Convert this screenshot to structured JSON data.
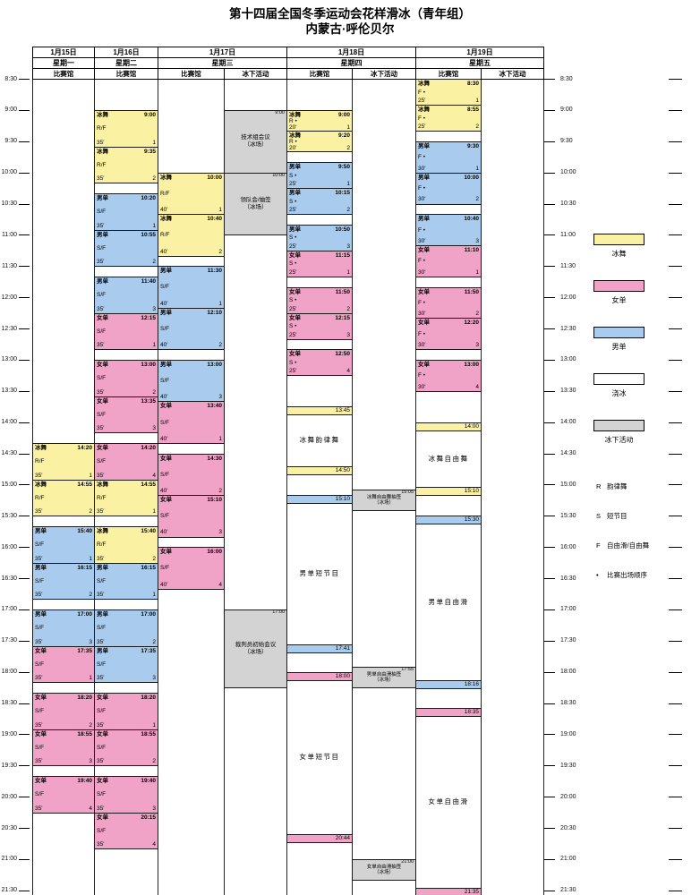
{
  "title": "第十四届全国冬季运动会花样滑冰（青年组）",
  "subtitle": "内蒙古·呼伦贝尔",
  "time_axis": {
    "start_min": 510,
    "end_min": 1290,
    "step_min": 30,
    "first_label": "8:30",
    "last_label": "21:30"
  },
  "legend": {
    "items": [
      {
        "label": "冰舞",
        "color": "#FBF1A2"
      },
      {
        "label": "女单",
        "color": "#F0A3C6"
      },
      {
        "label": "男单",
        "color": "#A9CCEE"
      },
      {
        "label": "浇冰",
        "color": "#FFFFFF"
      },
      {
        "label": "冰下活动",
        "color": "#D3D3D3"
      }
    ],
    "abbreviations": [
      {
        "symbol": "R",
        "label": "韵律舞"
      },
      {
        "symbol": "S",
        "label": "短节目"
      },
      {
        "symbol": "F",
        "label": "自由滑/自由舞"
      },
      {
        "symbol": "•",
        "label": "比赛出场顺序"
      }
    ]
  },
  "days": [
    {
      "date": "1月15日",
      "weekday": "星期一",
      "sub_columns": [
        {
          "header": "比赛馆",
          "items": [
            {
              "type": "practice",
              "discipline": "冰舞",
              "time": "14:20",
              "segment": "R/F",
              "duration": "35'",
              "group": "1"
            },
            {
              "type": "practice",
              "discipline": "冰舞",
              "time": "14:55",
              "segment": "R/F",
              "duration": "35'",
              "group": "2"
            },
            {
              "type": "practice",
              "discipline": "男单",
              "time": "15:40",
              "segment": "S/F",
              "duration": "35'",
              "group": "1"
            },
            {
              "type": "practice",
              "discipline": "男单",
              "time": "16:15",
              "segment": "S/F",
              "duration": "35'",
              "group": "2"
            },
            {
              "type": "practice",
              "discipline": "男单",
              "time": "17:00",
              "segment": "S/F",
              "duration": "35'",
              "group": "3"
            },
            {
              "type": "practice",
              "discipline": "女单",
              "time": "17:35",
              "segment": "S/F",
              "duration": "35'",
              "group": "1"
            },
            {
              "type": "practice",
              "discipline": "女单",
              "time": "18:20",
              "segment": "S/F",
              "duration": "35'",
              "group": "2"
            },
            {
              "type": "practice",
              "discipline": "女单",
              "time": "18:55",
              "segment": "S/F",
              "duration": "35'",
              "group": "3"
            },
            {
              "type": "practice",
              "discipline": "女单",
              "time": "19:40",
              "segment": "S/F",
              "duration": "35'",
              "group": "4"
            }
          ]
        }
      ]
    },
    {
      "date": "1月16日",
      "weekday": "星期二",
      "sub_columns": [
        {
          "header": "比赛馆",
          "items": [
            {
              "type": "practice",
              "discipline": "冰舞",
              "time": "9:00",
              "segment": "R/F",
              "duration": "35'",
              "group": "1"
            },
            {
              "type": "practice",
              "discipline": "冰舞",
              "time": "9:35",
              "segment": "R/F",
              "duration": "35'",
              "group": "2"
            },
            {
              "type": "practice",
              "discipline": "男单",
              "time": "10:20",
              "segment": "S/F",
              "duration": "35'",
              "group": "1"
            },
            {
              "type": "practice",
              "discipline": "男单",
              "time": "10:55",
              "segment": "S/F",
              "duration": "35'",
              "group": "2"
            },
            {
              "type": "practice",
              "discipline": "男单",
              "time": "11:40",
              "segment": "S/F",
              "duration": "35'",
              "group": "3"
            },
            {
              "type": "practice",
              "discipline": "女单",
              "time": "12:15",
              "segment": "S/F",
              "duration": "35'",
              "group": "1"
            },
            {
              "type": "practice",
              "discipline": "女单",
              "time": "13:00",
              "segment": "S/F",
              "duration": "35'",
              "group": "2"
            },
            {
              "type": "practice",
              "discipline": "女单",
              "time": "13:35",
              "segment": "S/F",
              "duration": "35'",
              "group": "3"
            },
            {
              "type": "practice",
              "discipline": "女单",
              "time": "14:20",
              "segment": "S/F",
              "duration": "35'",
              "group": "4"
            },
            {
              "type": "practice",
              "discipline": "冰舞",
              "time": "14:55",
              "segment": "R/F",
              "duration": "35'",
              "group": "1"
            },
            {
              "type": "practice",
              "discipline": "冰舞",
              "time": "15:40",
              "segment": "R/F",
              "duration": "35'",
              "group": "2"
            },
            {
              "type": "practice",
              "discipline": "男单",
              "time": "16:15",
              "segment": "S/F",
              "duration": "35'",
              "group": "1"
            },
            {
              "type": "practice",
              "discipline": "男单",
              "time": "17:00",
              "segment": "S/F",
              "duration": "35'",
              "group": "2"
            },
            {
              "type": "practice",
              "discipline": "男单",
              "time": "17:35",
              "segment": "S/F",
              "duration": "35'",
              "group": "3"
            },
            {
              "type": "practice",
              "discipline": "女单",
              "time": "18:20",
              "segment": "S/F",
              "duration": "35'",
              "group": "1"
            },
            {
              "type": "practice",
              "discipline": "女单",
              "time": "18:55",
              "segment": "S/F",
              "duration": "35'",
              "group": "2"
            },
            {
              "type": "practice",
              "discipline": "女单",
              "time": "19:40",
              "segment": "S/F",
              "duration": "35'",
              "group": "3"
            },
            {
              "type": "practice",
              "discipline": "女单",
              "time": "20:15",
              "segment": "S/F",
              "duration": "35'",
              "group": "4"
            }
          ]
        }
      ]
    },
    {
      "date": "1月17日",
      "weekday": "星期三",
      "sub_columns": [
        {
          "header": "比赛馆",
          "items": [
            {
              "type": "practice",
              "discipline": "冰舞",
              "time": "10:00",
              "segment": "R/F",
              "duration": "40'",
              "group": "1"
            },
            {
              "type": "practice",
              "discipline": "冰舞",
              "time": "10:40",
              "segment": "R/F",
              "duration": "40'",
              "group": "2"
            },
            {
              "type": "practice",
              "discipline": "男单",
              "time": "11:30",
              "segment": "S/F",
              "duration": "40'",
              "group": "1"
            },
            {
              "type": "practice",
              "discipline": "男单",
              "time": "12:10",
              "segment": "S/F",
              "duration": "40'",
              "group": "2"
            },
            {
              "type": "practice",
              "discipline": "男单",
              "time": "13:00",
              "segment": "S/F",
              "duration": "40'",
              "group": "3"
            },
            {
              "type": "practice",
              "discipline": "女单",
              "time": "13:40",
              "segment": "S/F",
              "duration": "40'",
              "group": "1"
            },
            {
              "type": "practice",
              "discipline": "女单",
              "time": "14:30",
              "segment": "S/F",
              "duration": "40'",
              "group": "2"
            },
            {
              "type": "practice",
              "discipline": "女单",
              "time": "15:10",
              "segment": "S/F",
              "duration": "40'",
              "group": "3"
            },
            {
              "type": "practice",
              "discipline": "女单",
              "time": "16:00",
              "segment": "S/F",
              "duration": "40'",
              "group": "4"
            }
          ]
        },
        {
          "header": "冰下活动",
          "items": [
            {
              "type": "meeting",
              "name": "技术组会议",
              "venue": "（冰场）",
              "time": "9:00",
              "end": "10:00"
            },
            {
              "type": "meeting",
              "name": "领队会/抽签",
              "venue": "（冰场）",
              "time": "10:00",
              "end": "11:00"
            },
            {
              "type": "meeting",
              "name": "裁判员初始会议",
              "venue": "（冰场）",
              "time": "17:00",
              "end": "18:15"
            }
          ]
        }
      ]
    },
    {
      "date": "1月18日",
      "weekday": "星期四",
      "sub_columns": [
        {
          "header": "比赛馆",
          "items": [
            {
              "type": "practice",
              "discipline": "冰舞",
              "time": "9:00",
              "segment": "R •",
              "duration": "20'",
              "group": "1"
            },
            {
              "type": "practice",
              "discipline": "冰舞",
              "time": "9:20",
              "segment": "R •",
              "duration": "20'",
              "group": "2"
            },
            {
              "type": "practice",
              "discipline": "男单",
              "time": "9:50",
              "segment": "S •",
              "duration": "25'",
              "group": "1"
            },
            {
              "type": "practice",
              "discipline": "男单",
              "time": "10:15",
              "segment": "S •",
              "duration": "25'",
              "group": "2"
            },
            {
              "type": "practice",
              "discipline": "男单",
              "time": "10:50",
              "segment": "S •",
              "duration": "25'",
              "group": "3"
            },
            {
              "type": "practice",
              "discipline": "女单",
              "time": "11:15",
              "segment": "S •",
              "duration": "25'",
              "group": "1"
            },
            {
              "type": "practice",
              "discipline": "女单",
              "time": "11:50",
              "segment": "S •",
              "duration": "25'",
              "group": "2"
            },
            {
              "type": "practice",
              "discipline": "女单",
              "time": "12:15",
              "segment": "S •",
              "duration": "25'",
              "group": "3"
            },
            {
              "type": "practice",
              "discipline": "女单",
              "time": "12:50",
              "segment": "S •",
              "duration": "25'",
              "group": "4"
            },
            {
              "type": "event",
              "name": "冰舞韵律舞",
              "discipline": "冰舞",
              "start": "13:45",
              "end": "14:50"
            },
            {
              "type": "event",
              "name": "男单短节目",
              "discipline": "男单",
              "start": "15:10",
              "end": "17:41"
            },
            {
              "type": "event",
              "name": "女单短节目",
              "discipline": "女单",
              "start": "18:00",
              "end": "20:44"
            }
          ]
        },
        {
          "header": "冰下活动",
          "items": [
            {
              "type": "meeting",
              "name": "冰舞自由舞抽签",
              "venue": "（冰场）",
              "time": "15:05",
              "end": "15:25"
            },
            {
              "type": "meeting",
              "name": "男单自由滑抽签",
              "venue": "（冰场）",
              "time": "17:55",
              "end": "18:15"
            },
            {
              "type": "meeting",
              "name": "女单自由滑抽签",
              "venue": "（冰场）",
              "time": "21:00",
              "end": "21:20"
            }
          ]
        }
      ]
    },
    {
      "date": "1月19日",
      "weekday": "星期五",
      "sub_columns": [
        {
          "header": "比赛馆",
          "items": [
            {
              "type": "practice",
              "discipline": "冰舞",
              "time": "8:30",
              "segment": "F •",
              "duration": "25'",
              "group": "1"
            },
            {
              "type": "practice",
              "discipline": "冰舞",
              "time": "8:55",
              "segment": "F •",
              "duration": "25'",
              "group": "2"
            },
            {
              "type": "practice",
              "discipline": "男单",
              "time": "9:30",
              "segment": "F •",
              "duration": "30'",
              "group": "1"
            },
            {
              "type": "practice",
              "discipline": "男单",
              "time": "10:00",
              "segment": "F •",
              "duration": "30'",
              "group": "2"
            },
            {
              "type": "practice",
              "discipline": "男单",
              "time": "10:40",
              "segment": "F •",
              "duration": "30'",
              "group": "3"
            },
            {
              "type": "practice",
              "discipline": "女单",
              "time": "11:10",
              "segment": "F •",
              "duration": "30'",
              "group": "1"
            },
            {
              "type": "practice",
              "discipline": "女单",
              "time": "11:50",
              "segment": "F •",
              "duration": "30'",
              "group": "2"
            },
            {
              "type": "practice",
              "discipline": "女单",
              "time": "12:20",
              "segment": "F •",
              "duration": "30'",
              "group": "3"
            },
            {
              "type": "practice",
              "discipline": "女单",
              "time": "13:00",
              "segment": "F •",
              "duration": "30'",
              "group": "4"
            },
            {
              "type": "event",
              "name": "冰舞自由舞",
              "discipline": "冰舞",
              "start": "14:00",
              "end": "15:10"
            },
            {
              "type": "event",
              "name": "男单自由滑",
              "discipline": "男单",
              "start": "15:30",
              "end": "18:16"
            },
            {
              "type": "event",
              "name": "女单自由滑",
              "discipline": "女单",
              "start": "18:35",
              "end": "21:35"
            }
          ]
        },
        {
          "header": "冰下活动",
          "items": []
        }
      ]
    }
  ]
}
